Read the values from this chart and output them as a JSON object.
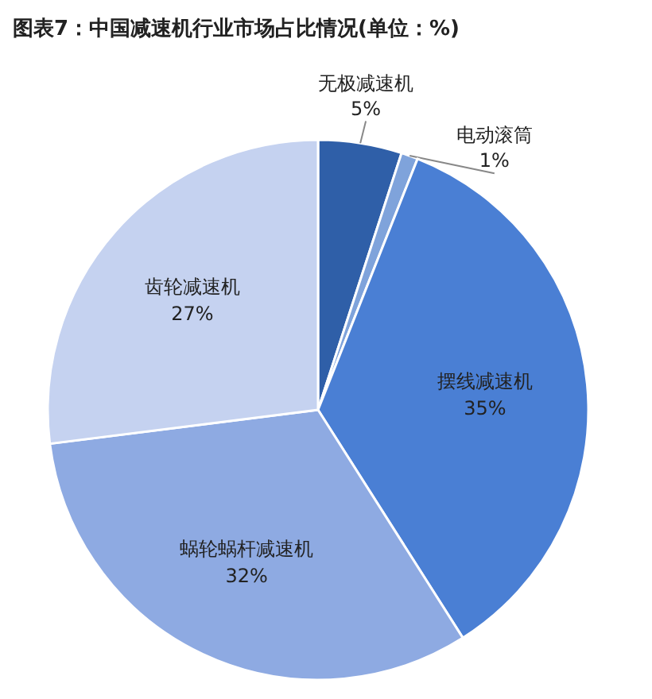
{
  "chart_data": {
    "type": "pie",
    "title": "图表7：中国减速机行业市场占比情况(单位：%)",
    "categories": [
      "无极减速机",
      "电动滚筒",
      "摆线减速机",
      "蜗轮蜗杆减速机",
      "齿轮减速机"
    ],
    "values": [
      5,
      1,
      35,
      32,
      27
    ],
    "value_labels": [
      "5%",
      "1%",
      "35%",
      "32%",
      "27%"
    ],
    "colors": [
      "#2f5fa8",
      "#7fa3db",
      "#4a7fd4",
      "#8eaae2",
      "#c5d2f0"
    ]
  }
}
